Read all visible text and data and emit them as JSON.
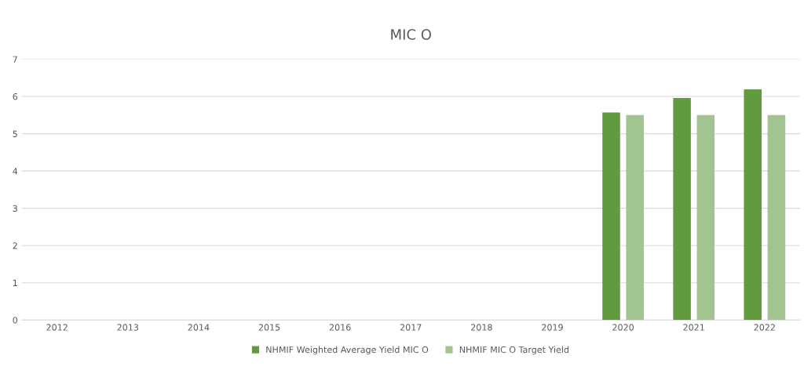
{
  "chart_data": {
    "type": "bar",
    "title": "MIC O",
    "categories": [
      "2012",
      "2013",
      "2014",
      "2015",
      "2016",
      "2017",
      "2018",
      "2019",
      "2020",
      "2021",
      "2022"
    ],
    "series": [
      {
        "name": "NHMIF Weighted Average Yield MIC O",
        "color": "#619a3f",
        "values": [
          null,
          null,
          null,
          null,
          null,
          null,
          null,
          null,
          5.57,
          5.96,
          6.19
        ]
      },
      {
        "name": "NHMIF MIC O Target Yield",
        "color": "#a2c490",
        "values": [
          null,
          null,
          null,
          null,
          null,
          null,
          null,
          null,
          5.5,
          5.5,
          5.5
        ]
      }
    ],
    "ylim": [
      0,
      7
    ],
    "yticks": [
      0,
      1,
      2,
      3,
      4,
      5,
      6,
      7
    ],
    "grid": "y",
    "legend": "bottom"
  }
}
